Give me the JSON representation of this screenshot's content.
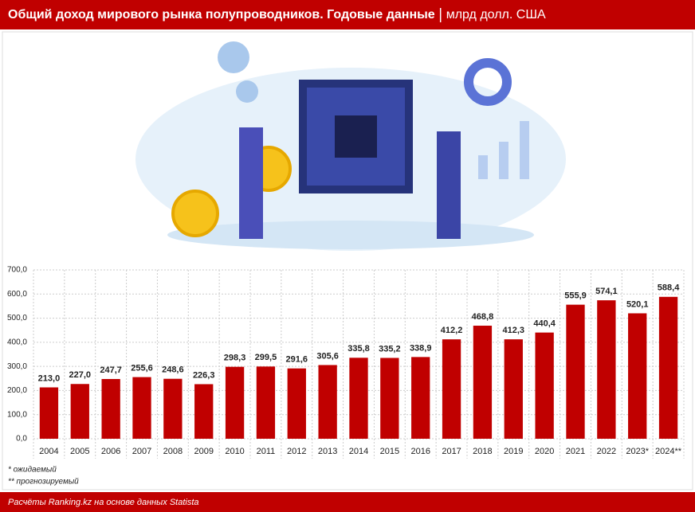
{
  "chart_data": {
    "type": "bar",
    "title": "Общий доход мирового рынка полупроводников. Годовые данные",
    "subtitle": "млрд долл. США",
    "categories": [
      "2004",
      "2005",
      "2006",
      "2007",
      "2008",
      "2009",
      "2010",
      "2011",
      "2012",
      "2013",
      "2014",
      "2015",
      "2016",
      "2017",
      "2018",
      "2019",
      "2020",
      "2021",
      "2022",
      "2023*",
      "2024**"
    ],
    "values": [
      213.0,
      227.0,
      247.7,
      255.6,
      248.6,
      226.3,
      298.3,
      299.5,
      291.6,
      305.6,
      335.8,
      335.2,
      338.9,
      412.2,
      468.8,
      412.3,
      440.4,
      555.9,
      574.1,
      520.1,
      588.4
    ],
    "value_labels": [
      "213,0",
      "227,0",
      "247,7",
      "255,6",
      "248,6",
      "226,3",
      "298,3",
      "299,5",
      "291,6",
      "305,6",
      "335,8",
      "335,2",
      "338,9",
      "412,2",
      "468,8",
      "412,3",
      "440,4",
      "555,9",
      "574,1",
      "520,1",
      "588,4"
    ],
    "color": "#c00000",
    "ylim": [
      0,
      700
    ],
    "yticks": [
      {
        "value": 0,
        "label": "0,0"
      },
      {
        "value": 100,
        "label": "100,0"
      },
      {
        "value": 200,
        "label": "200,0"
      },
      {
        "value": 300,
        "label": "300,0"
      },
      {
        "value": 400,
        "label": "400,0"
      },
      {
        "value": 500,
        "label": "500,0"
      },
      {
        "value": 600,
        "label": "600,0"
      },
      {
        "value": 700,
        "label": "700,0"
      }
    ],
    "grid": true,
    "footnotes": [
      "* ожидаемый",
      "** прогнозируемый"
    ],
    "source": "Расчёты Ranking.kz на основе данных Statista"
  }
}
